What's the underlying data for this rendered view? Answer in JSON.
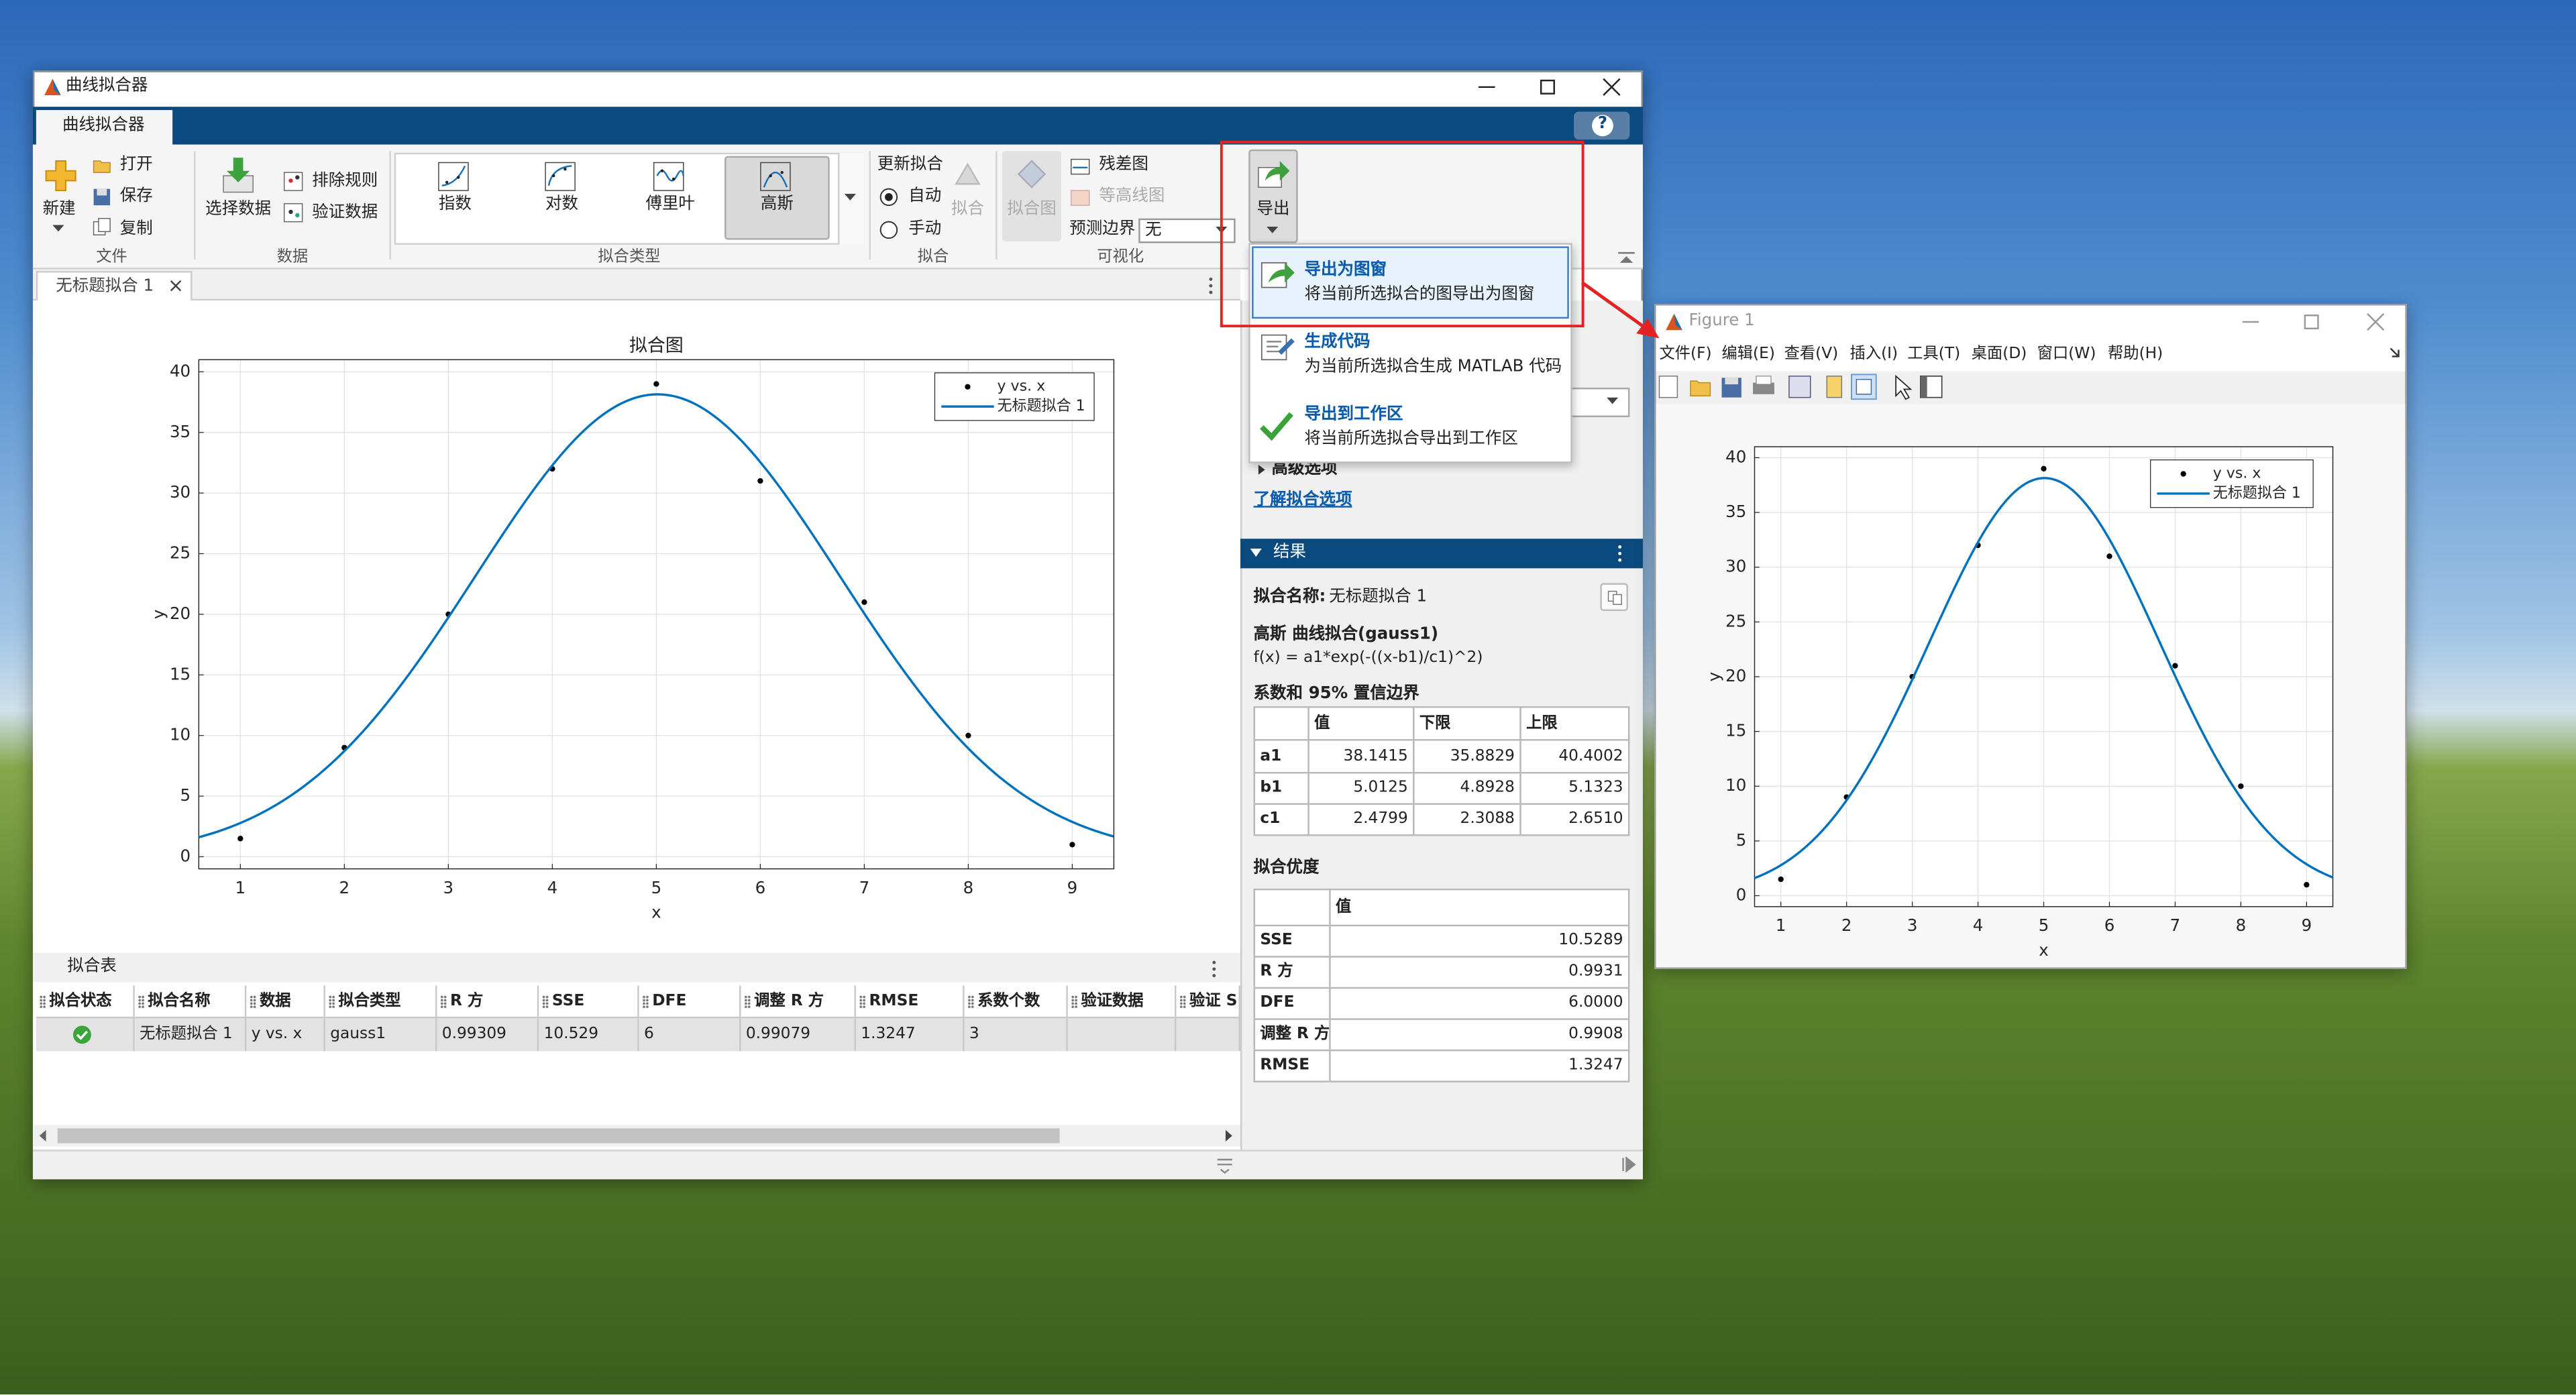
{
  "main_window": {
    "title": "曲线拟合器",
    "tab": "曲线拟合器",
    "help": "?",
    "toolstrip": {
      "file": {
        "label": "文件",
        "new": "新建",
        "open": "打开",
        "save": "保存",
        "copy": "复制"
      },
      "data": {
        "label": "数据",
        "select": "选择数据",
        "exclude": "排除规则",
        "validate": "验证数据"
      },
      "fit_type": {
        "label": "拟合类型",
        "items": [
          "指数",
          "对数",
          "傅里叶",
          "高斯"
        ]
      },
      "fit": {
        "label": "拟合",
        "update": "更新拟合",
        "auto": "自动",
        "manual": "手动",
        "fit": "拟合"
      },
      "visualize": {
        "label": "可视化",
        "fit_plot": "拟合图",
        "residual": "残差图",
        "contour": "等高线图",
        "pred_bounds": "预测边界",
        "pred_value": "无"
      },
      "export": {
        "label": "导出"
      }
    },
    "doc_tab": "无标题拟合 1",
    "export_menu": [
      {
        "title": "导出为图窗",
        "desc": "将当前所选拟合的图导出为图窗"
      },
      {
        "title": "生成代码",
        "desc": "为当前所选拟合生成 MATLAB 代码"
      },
      {
        "title": "导出到工作区",
        "desc": "将当前所选拟合导出到工作区"
      }
    ],
    "options": {
      "advanced": "高级选项",
      "learn": "了解拟合选项"
    },
    "results": {
      "header": "结果",
      "name_label": "拟合名称:",
      "name": "无标题拟合 1",
      "model_title": "高斯 曲线拟合(gauss1)",
      "equation": "f(x) = a1*exp(-((x-b1)/c1)^2)",
      "coef_title": "系数和 95% 置信边界",
      "coefficients": {
        "columns": [
          "值",
          "下限",
          "上限"
        ],
        "rows": [
          [
            "a1",
            38.1415,
            35.8829,
            40.4002
          ],
          [
            "b1",
            5.0125,
            4.8928,
            5.1323
          ],
          [
            "c1",
            2.4799,
            2.3088,
            {
              "value": 2.651,
              "label": "2.6510"
            }
          ]
        ]
      },
      "gof_title": "拟合优度",
      "gof": {
        "columns": [
          "值"
        ],
        "rows": [
          [
            "SSE",
            10.5289
          ],
          [
            "R 方",
            0.9931
          ],
          [
            "DFE",
            {
              "value": 6,
              "label": "6.0000"
            }
          ],
          [
            "调整 R 方",
            0.9908
          ],
          [
            "RMSE",
            1.3247
          ]
        ]
      }
    },
    "fit_table": {
      "title": "拟合表",
      "columns": [
        "拟合状态",
        "拟合名称",
        "数据",
        "拟合类型",
        "R 方",
        "SSE",
        "DFE",
        "调整 R 方",
        "RMSE",
        "系数个数",
        "验证数据",
        "验证 S"
      ],
      "rows": [
        [
          null,
          "无标题拟合 1",
          "y vs. x",
          "gauss1",
          0.99309,
          10.529,
          6,
          0.99079,
          1.3247,
          3,
          null,
          null
        ]
      ]
    }
  },
  "figure_window": {
    "title": "Figure 1",
    "menu": [
      "文件(F)",
      "编辑(E)",
      "查看(V)",
      "插入(I)",
      "工具(T)",
      "桌面(D)",
      "窗口(W)",
      "帮助(H)"
    ]
  },
  "chart_data": [
    {
      "type": "scatter",
      "title": "拟合图",
      "x_label": "x",
      "y_label": "y",
      "x": [
        1,
        2,
        3,
        4,
        5,
        6,
        7,
        8,
        9
      ],
      "series": [
        {
          "name": "y vs. x",
          "color": "#000000",
          "values": [
            1.5,
            9,
            20,
            32,
            39,
            31,
            21,
            10,
            1
          ]
        },
        {
          "name": "无标题拟合 1",
          "color": "#0072bd",
          "model": "gauss1"
        }
      ],
      "xlim": [
        0.6,
        9.4
      ],
      "ylim": [
        -1,
        41
      ],
      "xticks": [
        1,
        2,
        3,
        4,
        5,
        6,
        7,
        8,
        9
      ],
      "yticks": [
        0,
        5,
        10,
        15,
        20,
        25,
        30,
        35,
        40
      ],
      "grid": true,
      "legend": "upper right"
    },
    {
      "type": "scatter",
      "x_label": "x",
      "y_label": "y",
      "x": [
        1,
        2,
        3,
        4,
        5,
        6,
        7,
        8,
        9
      ],
      "series": [
        {
          "name": "y vs. x",
          "color": "#000000",
          "values": [
            1.5,
            9,
            20,
            32,
            39,
            31,
            21,
            10,
            1
          ]
        },
        {
          "name": "无标题拟合 1",
          "color": "#0072bd",
          "model": "gauss1"
        }
      ],
      "xlim": [
        0.6,
        9.4
      ],
      "ylim": [
        -1,
        41
      ],
      "xticks": [
        1,
        2,
        3,
        4,
        5,
        6,
        7,
        8,
        9
      ],
      "yticks": [
        0,
        5,
        10,
        15,
        20,
        25,
        30,
        35,
        40
      ],
      "grid": true,
      "legend": "upper right"
    }
  ]
}
